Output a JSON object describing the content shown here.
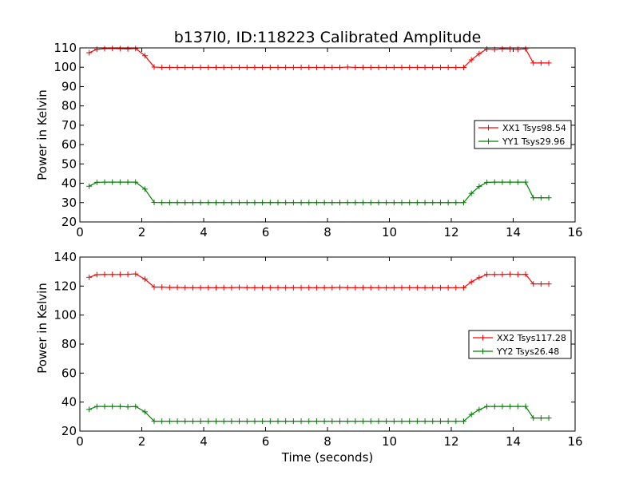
{
  "title": "b137l0, ID:118223 Calibrated Amplitude",
  "colors": {
    "xx": "#ff0000",
    "yy": "#008000"
  },
  "chart_data": [
    {
      "type": "line",
      "title": "b137l0, ID:118223 Calibrated Amplitude",
      "xlabel": "",
      "ylabel": "Power in Kelvin",
      "xlim": [
        0,
        16
      ],
      "ylim": [
        20,
        110
      ],
      "xticks": [
        "0",
        "2",
        "4",
        "6",
        "8",
        "10",
        "12",
        "14",
        "16"
      ],
      "yticks": [
        "20",
        "30",
        "40",
        "50",
        "60",
        "70",
        "80",
        "90",
        "100",
        "110"
      ],
      "legend_position": "center-right",
      "x": [
        0.3,
        0.55,
        0.8,
        1.05,
        1.3,
        1.55,
        1.8,
        2.1,
        2.4,
        2.65,
        2.9,
        3.15,
        3.4,
        3.65,
        3.9,
        4.15,
        4.4,
        4.65,
        4.9,
        5.15,
        5.4,
        5.65,
        5.9,
        6.15,
        6.4,
        6.65,
        6.9,
        7.15,
        7.4,
        7.65,
        7.9,
        8.15,
        8.4,
        8.65,
        8.9,
        9.15,
        9.4,
        9.65,
        9.9,
        10.15,
        10.4,
        10.65,
        10.9,
        11.15,
        11.4,
        11.65,
        11.9,
        12.15,
        12.4,
        12.65,
        12.9,
        13.15,
        13.4,
        13.65,
        13.9,
        14.15,
        14.4,
        14.65,
        14.9,
        15.15
      ],
      "series": [
        {
          "name": "XX1 Tsys98.54",
          "color": "#ff0000",
          "values": [
            107.5,
            109.3,
            109.6,
            109.7,
            109.6,
            109.5,
            109.7,
            106.0,
            100.1,
            99.9,
            99.9,
            99.9,
            99.9,
            99.9,
            99.9,
            99.9,
            99.9,
            99.9,
            99.9,
            99.9,
            99.9,
            99.9,
            99.9,
            99.9,
            99.9,
            99.9,
            99.9,
            99.9,
            99.9,
            99.9,
            99.9,
            99.9,
            99.9,
            100.1,
            99.9,
            99.9,
            99.9,
            99.9,
            99.9,
            99.9,
            99.9,
            99.9,
            99.9,
            99.9,
            99.9,
            99.9,
            99.9,
            99.9,
            99.9,
            103.8,
            107.0,
            109.4,
            109.2,
            109.5,
            109.4,
            109.3,
            109.5,
            102.2,
            102.2,
            102.2
          ]
        },
        {
          "name": "YY1 Tsys29.96",
          "color": "#008000",
          "values": [
            38.5,
            40.5,
            40.6,
            40.6,
            40.6,
            40.6,
            40.6,
            37.0,
            30.1,
            30.0,
            30.0,
            30.0,
            30.0,
            30.0,
            30.0,
            30.0,
            30.0,
            30.0,
            30.0,
            30.0,
            30.0,
            30.0,
            30.0,
            30.0,
            30.0,
            30.0,
            30.0,
            30.0,
            30.0,
            30.0,
            30.0,
            30.0,
            30.0,
            30.0,
            30.0,
            30.0,
            30.0,
            30.0,
            30.0,
            30.0,
            30.0,
            30.0,
            30.0,
            30.0,
            30.0,
            30.0,
            30.0,
            30.0,
            30.0,
            34.8,
            38.3,
            40.5,
            40.6,
            40.6,
            40.6,
            40.6,
            40.6,
            32.5,
            32.5,
            32.5
          ]
        }
      ]
    },
    {
      "type": "line",
      "title": "",
      "xlabel": "Time (seconds)",
      "ylabel": "Power in Kelvin",
      "xlim": [
        0,
        16
      ],
      "ylim": [
        20,
        140
      ],
      "xticks": [
        "0",
        "2",
        "4",
        "6",
        "8",
        "10",
        "12",
        "14",
        "16"
      ],
      "yticks": [
        "20",
        "40",
        "60",
        "80",
        "100",
        "120",
        "140"
      ],
      "legend_position": "center-right",
      "x": [
        0.3,
        0.55,
        0.8,
        1.05,
        1.3,
        1.55,
        1.8,
        2.1,
        2.4,
        2.65,
        2.9,
        3.15,
        3.4,
        3.65,
        3.9,
        4.15,
        4.4,
        4.65,
        4.9,
        5.15,
        5.4,
        5.65,
        5.9,
        6.15,
        6.4,
        6.65,
        6.9,
        7.15,
        7.4,
        7.65,
        7.9,
        8.15,
        8.4,
        8.65,
        8.9,
        9.15,
        9.4,
        9.65,
        9.9,
        10.15,
        10.4,
        10.65,
        10.9,
        11.15,
        11.4,
        11.65,
        11.9,
        12.15,
        12.4,
        12.65,
        12.9,
        13.15,
        13.4,
        13.65,
        13.9,
        14.15,
        14.4,
        14.65,
        14.9,
        15.15
      ],
      "series": [
        {
          "name": "XX2 Tsys117.28",
          "color": "#ff0000",
          "values": [
            126.0,
            127.9,
            128.0,
            128.0,
            128.0,
            128.1,
            128.4,
            124.8,
            119.3,
            119.3,
            119.0,
            119.1,
            118.9,
            118.9,
            118.9,
            118.9,
            118.9,
            118.9,
            118.9,
            119.1,
            118.9,
            118.9,
            118.9,
            118.9,
            118.9,
            118.9,
            118.9,
            118.9,
            118.9,
            118.9,
            118.9,
            118.9,
            119.1,
            118.9,
            118.9,
            118.9,
            118.9,
            118.9,
            118.9,
            118.9,
            118.9,
            118.9,
            118.9,
            118.9,
            118.9,
            118.9,
            118.9,
            118.9,
            118.9,
            122.9,
            125.8,
            128.0,
            128.0,
            128.0,
            128.2,
            128.0,
            128.1,
            121.5,
            121.5,
            121.5
          ]
        },
        {
          "name": "YY2 Tsys26.48",
          "color": "#008000",
          "values": [
            35.0,
            37.0,
            37.0,
            37.0,
            37.0,
            36.7,
            37.0,
            33.3,
            26.8,
            26.8,
            26.8,
            26.8,
            26.8,
            26.8,
            26.8,
            26.8,
            26.8,
            26.8,
            26.8,
            26.8,
            26.8,
            26.8,
            26.8,
            26.8,
            26.8,
            26.8,
            26.8,
            26.8,
            26.8,
            26.8,
            26.8,
            26.8,
            26.8,
            26.8,
            26.8,
            26.8,
            26.8,
            26.8,
            26.8,
            26.8,
            26.8,
            26.8,
            26.8,
            26.8,
            26.8,
            26.8,
            26.8,
            26.8,
            26.8,
            31.5,
            34.8,
            37.0,
            37.0,
            37.0,
            37.0,
            37.0,
            37.0,
            29.0,
            29.0,
            29.0
          ]
        }
      ]
    }
  ]
}
